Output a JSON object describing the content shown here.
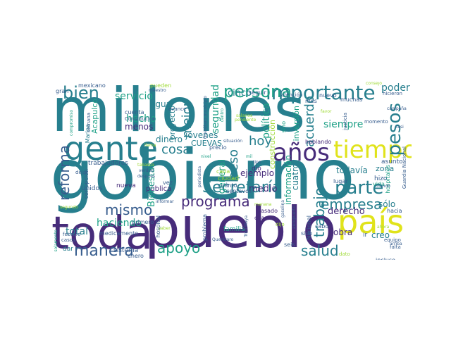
{
  "palette": {
    "dark_purple": "#46327e",
    "purple": "#472c7a",
    "blue": "#365c8d",
    "teal_dark": "#277f8e",
    "teal": "#1fa187",
    "green": "#4ac16d",
    "lime": "#a0da39",
    "yellow": "#e0e31b"
  },
  "words": [
    {
      "text": "millones",
      "color": "teal_dark"
    },
    {
      "text": "gobierno",
      "color": "teal_dark"
    },
    {
      "text": "pueblo",
      "color": "purple"
    },
    {
      "text": "toda",
      "color": "purple"
    },
    {
      "text": "gente",
      "color": "teal_dark"
    },
    {
      "text": "país",
      "color": "yellow"
    },
    {
      "text": "tiempo",
      "color": "yellow"
    },
    {
      "text": "años",
      "color": "purple"
    },
    {
      "text": "importante",
      "color": "teal_dark"
    },
    {
      "text": "persona",
      "color": "teal"
    },
    {
      "text": "bien",
      "color": "teal_dark"
    },
    {
      "text": "pesos",
      "color": "teal_dark"
    },
    {
      "text": "parte",
      "color": "teal_dark"
    },
    {
      "text": "Secretaría",
      "color": "teal_dark"
    },
    {
      "text": "manera",
      "color": "blue"
    },
    {
      "text": "programa",
      "color": "purple"
    },
    {
      "text": "mismo",
      "color": "blue"
    },
    {
      "text": "apoyo",
      "color": "teal"
    },
    {
      "text": "salud",
      "color": "teal_dark"
    },
    {
      "text": "empresa",
      "color": "teal_dark"
    },
    {
      "text": "reforma",
      "color": "blue"
    },
    {
      "text": "hoy",
      "color": "teal_dark"
    },
    {
      "text": "cosa",
      "color": "teal_dark"
    },
    {
      "text": "trabajo",
      "color": "teal_dark"
    },
    {
      "text": "peso",
      "color": "teal_dark"
    },
    {
      "text": "mejor",
      "color": "teal_dark"
    },
    {
      "text": "acuerdo",
      "color": "teal_dark"
    },
    {
      "text": "siempre",
      "color": "teal"
    },
    {
      "text": "poder",
      "color": "teal_dark"
    },
    {
      "text": "haciendo",
      "color": "teal"
    },
    {
      "text": "servicio",
      "color": "teal"
    },
    {
      "text": "hecho",
      "color": "teal"
    },
    {
      "text": "menos",
      "color": "purple"
    },
    {
      "text": "seguridad",
      "color": "teal"
    },
    {
      "text": "política",
      "color": "teal"
    },
    {
      "text": "cinco",
      "color": "teal_dark"
    },
    {
      "text": "agua",
      "color": "teal_dark"
    },
    {
      "text": "dinero",
      "color": "teal_dark"
    },
    {
      "text": "jóvenes",
      "color": "teal_dark"
    },
    {
      "text": "ejemplo",
      "color": "purple"
    },
    {
      "text": "general",
      "color": "teal"
    },
    {
      "text": "medio",
      "color": "purple"
    },
    {
      "text": "Bienestar",
      "color": "teal"
    },
    {
      "text": "derecho",
      "color": "purple"
    },
    {
      "text": "sólo",
      "color": "teal_dark"
    },
    {
      "text": "obra",
      "color": "purple"
    },
    {
      "text": "creo",
      "color": "teal_dark"
    },
    {
      "text": "zona",
      "color": "teal_dark"
    },
    {
      "text": "información",
      "color": "teal"
    },
    {
      "text": "cuatro",
      "color": "teal_dark"
    },
    {
      "text": "todavía",
      "color": "teal_dark"
    },
    {
      "text": "proyecto",
      "color": "teal_dark"
    },
    {
      "text": "Acapulco",
      "color": "teal"
    },
    {
      "text": "CUEVAS",
      "color": "teal_dark"
    },
    {
      "text": "construcción",
      "color": "lime"
    },
    {
      "text": "inversión",
      "color": "teal"
    },
    {
      "text": "mexicano",
      "color": "blue"
    },
    {
      "text": "pueden",
      "color": "lime"
    },
    {
      "text": "maestro",
      "color": "blue"
    },
    {
      "text": "gran",
      "color": "blue"
    },
    {
      "text": "cuenta",
      "color": "blue"
    },
    {
      "text": "Constitución",
      "color": "blue"
    },
    {
      "text": "Marina",
      "color": "teal_dark"
    },
    {
      "text": "trabajadores",
      "color": "blue"
    },
    {
      "text": "corrupción",
      "color": "blue"
    },
    {
      "text": "Unidos",
      "color": "blue"
    },
    {
      "text": "nueva",
      "color": "purple"
    },
    {
      "text": "pública",
      "color": "purple"
    },
    {
      "text": "hospital",
      "color": "blue"
    },
    {
      "text": "problema",
      "color": "blue"
    },
    {
      "text": "familia",
      "color": "teal"
    },
    {
      "text": "sistema",
      "color": "blue"
    },
    {
      "text": "enero",
      "color": "blue"
    },
    {
      "text": "primero",
      "color": "blue"
    },
    {
      "text": "medicamento",
      "color": "blue"
    },
    {
      "text": "total",
      "color": "teal_dark"
    },
    {
      "text": "dar",
      "color": "teal_dark"
    },
    {
      "text": "dejar",
      "color": "blue"
    },
    {
      "text": "vez",
      "color": "blue"
    },
    {
      "text": "centavos",
      "color": "blue"
    },
    {
      "text": "cuánto",
      "color": "blue"
    },
    {
      "text": "pasado",
      "color": "purple"
    },
    {
      "text": "dio",
      "color": "purple"
    },
    {
      "text": "lugar",
      "color": "blue"
    },
    {
      "text": "hizo",
      "color": "blue"
    },
    {
      "text": "ir",
      "color": "blue"
    },
    {
      "text": "mes",
      "color": "blue"
    },
    {
      "text": "nuevo",
      "color": "blue"
    },
    {
      "text": "sino",
      "color": "teal"
    },
    {
      "text": "momento",
      "color": "blue"
    },
    {
      "text": "asunto",
      "color": "blue"
    },
    {
      "text": "hacia",
      "color": "blue"
    },
    {
      "text": "incluso",
      "color": "blue"
    },
    {
      "text": "vida",
      "color": "teal"
    },
    {
      "text": "Nacional",
      "color": "blue"
    },
    {
      "text": "Guardia Nacional",
      "color": "blue"
    },
    {
      "text": "hospitales",
      "color": "teal"
    },
    {
      "text": "cabo",
      "color": "blue"
    },
    {
      "text": "seis",
      "color": "blue"
    },
    {
      "text": "dato",
      "color": "lime"
    },
    {
      "text": "sido",
      "color": "blue"
    },
    {
      "text": "aeropuerto",
      "color": "blue"
    },
    {
      "text": "ciudad",
      "color": "lime"
    },
    {
      "text": "cada",
      "color": "lime"
    },
    {
      "text": "manana",
      "color": "lime"
    },
    {
      "text": "seguir",
      "color": "blue"
    },
    {
      "text": "atención",
      "color": "blue"
    },
    {
      "text": "hicieron",
      "color": "blue"
    },
    {
      "text": "muchas",
      "color": "blue"
    },
    {
      "text": "mundo",
      "color": "blue"
    },
    {
      "text": "equipo",
      "color": "blue"
    },
    {
      "text": "falta",
      "color": "blue"
    },
    {
      "text": "arriba",
      "color": "blue"
    },
    {
      "text": "campaña",
      "color": "blue"
    },
    {
      "text": "casi",
      "color": "blue"
    },
    {
      "text": "favor",
      "color": "lime"
    },
    {
      "text": "justicia",
      "color": "blue"
    },
    {
      "text": "gasolina",
      "color": "blue"
    },
    {
      "text": "Querétaro",
      "color": "blue"
    },
    {
      "text": "periodista",
      "color": "blue"
    },
    {
      "text": "tipo",
      "color": "blue"
    },
    {
      "text": "cuanto",
      "color": "purple"
    },
    {
      "text": "precio",
      "color": "blue"
    },
    {
      "text": "centro",
      "color": "teal"
    },
    {
      "text": "llama",
      "color": "lime"
    },
    {
      "text": "tabasco",
      "color": "lime"
    },
    {
      "text": "verdad",
      "color": "blue"
    },
    {
      "text": "después",
      "color": "blue"
    },
    {
      "text": "informar",
      "color": "blue"
    },
    {
      "text": "saber",
      "color": "lime"
    },
    {
      "text": "febrero",
      "color": "blue"
    },
    {
      "text": "casos",
      "color": "blue"
    },
    {
      "text": "solamente",
      "color": "teal"
    },
    {
      "text": "semana",
      "color": "blue"
    },
    {
      "text": "compromiso",
      "color": "teal"
    },
    {
      "text": "avance",
      "color": "blue"
    },
    {
      "text": "hablando",
      "color": "purple"
    },
    {
      "text": "situación",
      "color": "blue"
    },
    {
      "text": "Tren Maya",
      "color": "blue"
    },
    {
      "text": "salarios",
      "color": "lime"
    },
    {
      "text": "pendiente",
      "color": "lime"
    },
    {
      "text": "dijo",
      "color": "lime"
    },
    {
      "text": "Querétaro municipio",
      "color": "blue"
    },
    {
      "text": "consejo",
      "color": "lime"
    },
    {
      "text": "ahora",
      "color": "lime"
    },
    {
      "text": "segundo",
      "color": "lime"
    },
    {
      "text": "nivel",
      "color": "teal"
    },
    {
      "text": "mil",
      "color": "teal"
    }
  ]
}
